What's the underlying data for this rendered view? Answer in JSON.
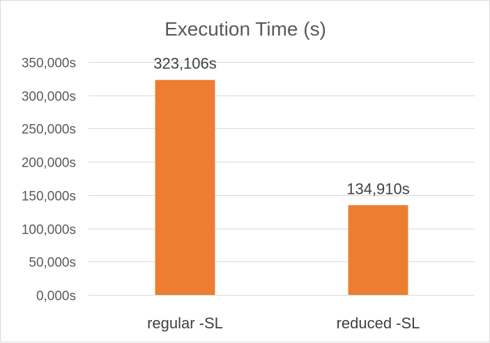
{
  "chart_data": {
    "type": "bar",
    "title": "Execution Time (s)",
    "xlabel": "",
    "ylabel": "",
    "categories": [
      "regular -SL",
      "reduced -SL"
    ],
    "values": [
      323106,
      134910
    ],
    "value_labels": [
      "323,106s",
      "134,910s"
    ],
    "ylim": [
      0,
      350000
    ],
    "yticks": [
      0,
      50000,
      100000,
      150000,
      200000,
      250000,
      300000,
      350000
    ],
    "ytick_labels": [
      "0,000s",
      "50,000s",
      "100,000s",
      "150,000s",
      "200,000s",
      "250,000s",
      "300,000s",
      "350,000s"
    ],
    "grid": true,
    "legend": "none",
    "bar_color": "#ED7D31"
  }
}
